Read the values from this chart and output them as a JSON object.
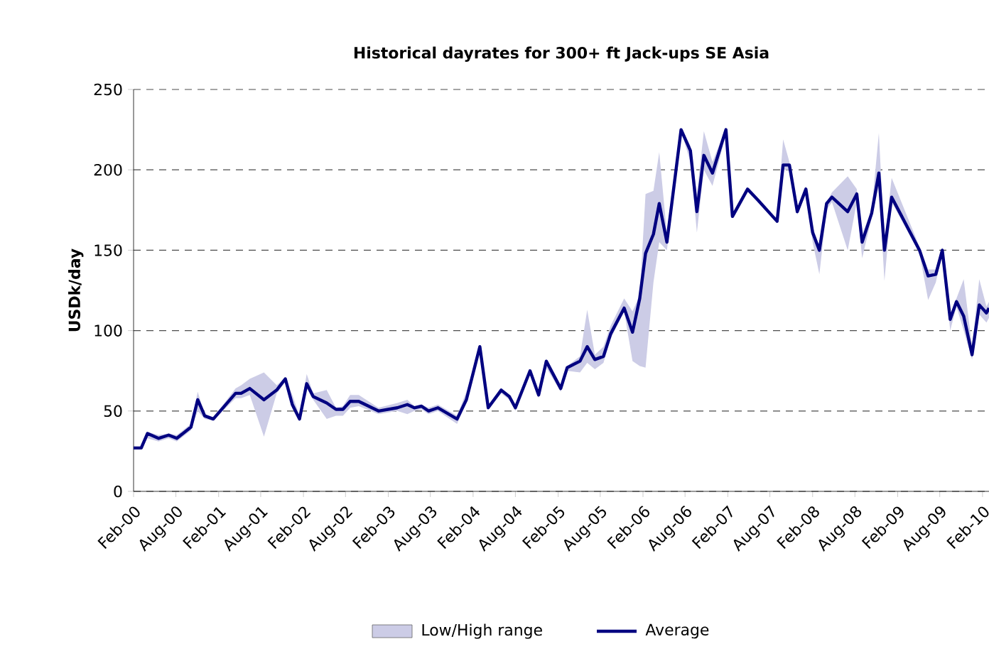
{
  "chart_data": {
    "type": "line",
    "title": "Historical dayrates for 300+ ft Jack-ups SE Asia",
    "ylabel": "USDk/day",
    "annotations": [
      "Low/High range"
    ],
    "x": [
      "2000-02-01",
      "2000-03-05",
      "2000-04-01",
      "2000-05-18",
      "2000-07-01",
      "2000-08-05",
      "2000-10-05",
      "2000-11-03",
      "2000-12-03",
      "2001-01-09",
      "2001-04-15",
      "2001-05-09",
      "2001-06-15",
      "2001-08-15",
      "2001-10-09",
      "2001-11-15",
      "2001-12-15",
      "2002-01-15",
      "2002-02-15",
      "2002-03-15",
      "2002-05-12",
      "2002-06-21",
      "2002-07-21",
      "2002-08-21",
      "2002-09-27",
      "2002-12-21",
      "2003-03-12",
      "2003-04-24",
      "2003-05-24",
      "2003-06-24",
      "2003-07-24",
      "2003-09-03",
      "2003-11-24",
      "2004-01-03",
      "2004-03-01",
      "2004-04-06",
      "2004-06-01",
      "2004-07-06",
      "2004-08-01",
      "2004-10-03",
      "2004-11-09",
      "2004-12-12",
      "2005-02-12",
      "2005-03-12",
      "2005-05-06",
      "2005-06-06",
      "2005-07-09",
      "2005-08-15",
      "2005-09-15",
      "2005-11-12",
      "2005-12-18",
      "2006-01-18",
      "2006-02-12",
      "2006-03-18",
      "2006-04-12",
      "2006-05-15",
      "2006-07-15",
      "2006-08-24",
      "2006-09-21",
      "2006-10-21",
      "2006-11-27",
      "2007-01-24",
      "2007-02-21",
      "2007-04-27",
      "2007-06-12",
      "2007-09-01",
      "2007-09-27",
      "2007-10-24",
      "2007-11-27",
      "2008-01-03",
      "2008-02-01",
      "2008-03-01",
      "2008-04-01",
      "2008-04-24",
      "2008-07-01",
      "2008-08-09",
      "2008-09-01",
      "2008-10-12",
      "2008-11-12",
      "2008-12-06",
      "2009-01-06",
      "2009-05-06",
      "2009-06-12",
      "2009-07-15",
      "2009-08-12",
      "2009-09-15",
      "2009-10-12",
      "2009-11-12",
      "2009-12-18",
      "2010-01-18",
      "2010-02-18",
      "2010-03-01"
    ],
    "series": [
      {
        "name": "Average",
        "color": "#000080",
        "values": [
          27,
          27,
          36,
          33,
          35,
          33,
          40,
          57,
          47,
          45,
          61,
          61,
          64,
          57,
          63,
          70,
          54,
          45,
          67,
          59,
          55,
          51,
          51,
          56,
          56,
          50,
          52,
          54,
          52,
          53,
          50,
          52,
          45,
          57,
          90,
          52,
          63,
          59,
          52,
          75,
          60,
          81,
          64,
          77,
          81,
          90,
          82,
          84,
          98,
          114,
          99,
          120,
          148,
          160,
          179,
          155,
          225,
          212,
          174,
          209,
          198,
          225,
          171,
          188,
          181,
          168,
          203,
          203,
          174,
          188,
          161,
          150,
          179,
          183,
          174,
          185,
          155,
          173,
          198,
          150,
          183,
          150,
          134,
          135,
          150,
          107,
          118,
          109,
          85,
          116,
          111,
          114
        ],
        "lower": [
          27,
          27,
          33,
          31,
          33,
          31,
          38,
          50,
          45,
          44,
          58,
          58,
          60,
          34,
          61,
          68,
          52,
          44,
          64,
          57,
          45,
          47,
          47,
          52,
          53,
          48,
          50,
          48,
          50,
          51,
          48,
          50,
          42,
          55,
          89,
          51,
          61,
          57,
          50,
          73,
          58,
          77,
          62,
          75,
          74,
          80,
          76,
          80,
          95,
          112,
          81,
          78,
          77,
          130,
          155,
          150,
          224,
          205,
          161,
          200,
          190,
          222,
          170,
          187,
          180,
          167,
          200,
          200,
          172,
          185,
          155,
          135,
          175,
          180,
          150,
          180,
          145,
          170,
          190,
          131,
          180,
          148,
          119,
          130,
          148,
          100,
          115,
          100,
          82,
          110,
          105,
          108
        ],
        "upper": [
          27,
          28,
          37,
          35,
          36,
          35,
          42,
          62,
          48,
          46,
          64,
          66,
          70,
          74,
          66,
          71,
          60,
          47,
          73,
          61,
          63,
          52,
          53,
          60,
          60,
          52,
          55,
          57,
          53,
          54,
          52,
          54,
          47,
          62,
          90,
          53,
          64,
          60,
          53,
          76,
          61,
          82,
          66,
          78,
          84,
          113,
          85,
          90,
          103,
          120,
          112,
          122,
          185,
          187,
          211,
          160,
          226,
          215,
          185,
          224,
          205,
          226,
          172,
          189,
          182,
          169,
          219,
          205,
          176,
          190,
          165,
          152,
          180,
          186,
          196,
          188,
          160,
          175,
          223,
          155,
          195,
          152,
          138,
          138,
          152,
          110,
          120,
          132,
          90,
          132,
          115,
          118
        ]
      }
    ],
    "xlim": [
      "2000-02-01",
      "2010-03-01"
    ],
    "xticks": [
      {
        "value": "2000-02-01",
        "label": "Feb-00"
      },
      {
        "value": "2000-08-01",
        "label": "Aug-00"
      },
      {
        "value": "2001-02-01",
        "label": "Feb-01"
      },
      {
        "value": "2001-08-01",
        "label": "Aug-01"
      },
      {
        "value": "2002-02-01",
        "label": "Feb-02"
      },
      {
        "value": "2002-08-01",
        "label": "Aug-02"
      },
      {
        "value": "2003-02-01",
        "label": "Feb-03"
      },
      {
        "value": "2003-08-01",
        "label": "Aug-03"
      },
      {
        "value": "2004-02-01",
        "label": "Feb-04"
      },
      {
        "value": "2004-08-01",
        "label": "Aug-04"
      },
      {
        "value": "2005-02-01",
        "label": "Feb-05"
      },
      {
        "value": "2005-08-01",
        "label": "Aug-05"
      },
      {
        "value": "2006-02-01",
        "label": "Feb-06"
      },
      {
        "value": "2006-08-01",
        "label": "Aug-06"
      },
      {
        "value": "2007-02-01",
        "label": "Feb-07"
      },
      {
        "value": "2007-08-01",
        "label": "Aug-07"
      },
      {
        "value": "2008-02-01",
        "label": "Feb-08"
      },
      {
        "value": "2008-08-01",
        "label": "Aug-08"
      },
      {
        "value": "2009-02-01",
        "label": "Feb-09"
      },
      {
        "value": "2009-08-01",
        "label": "Aug-09"
      },
      {
        "value": "2010-02-01",
        "label": "Feb-10"
      }
    ],
    "ylim": [
      0,
      250
    ],
    "yticks": [
      0,
      50,
      100,
      150,
      200,
      250
    ],
    "grid": "y",
    "legend": "bottom",
    "line_style": "solid",
    "marker": "none"
  }
}
